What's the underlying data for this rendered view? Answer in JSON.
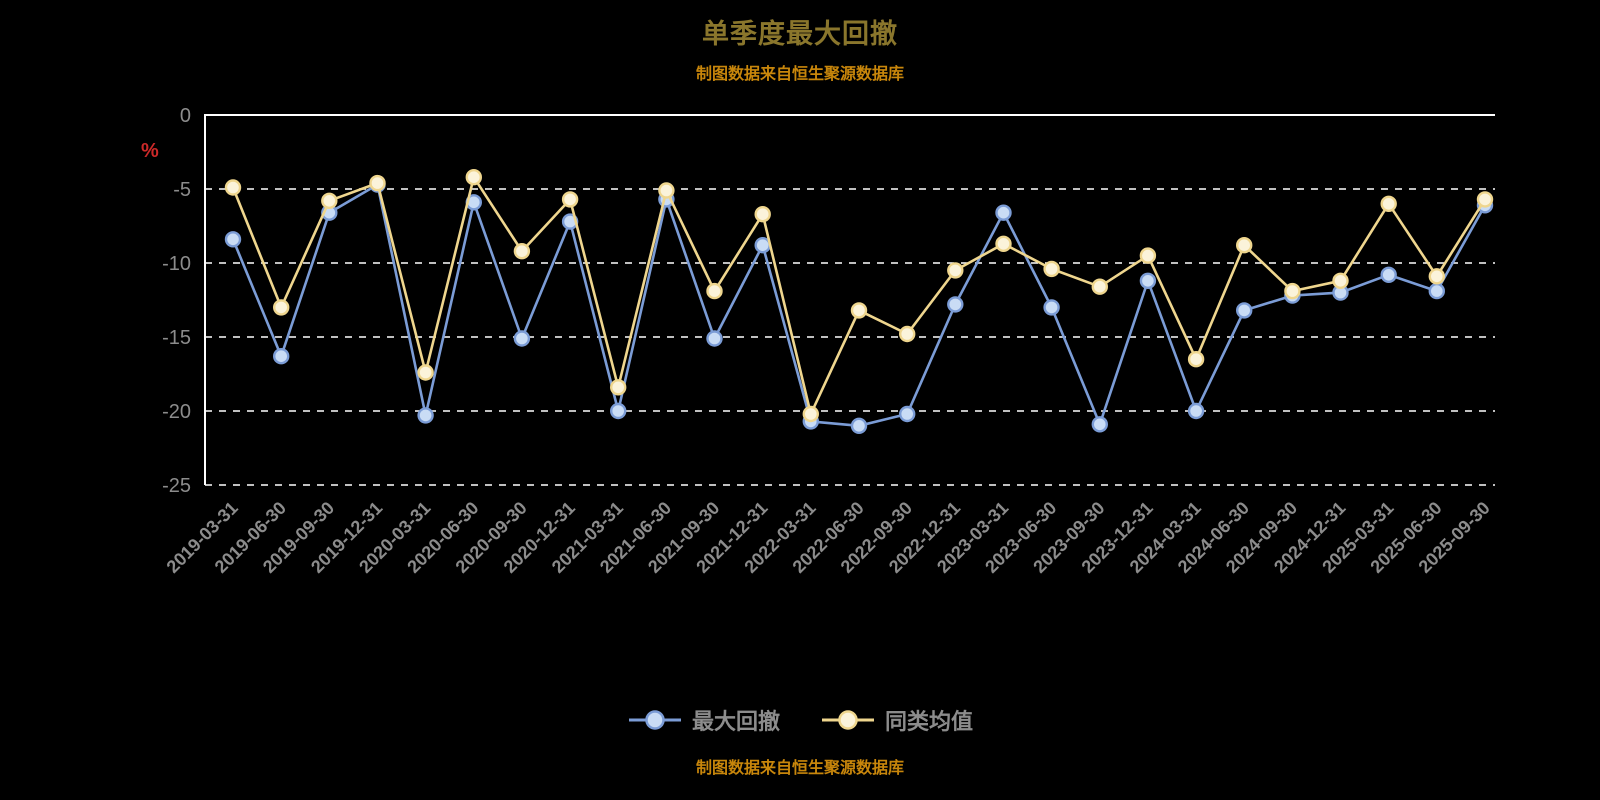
{
  "title": "单季度最大回撤",
  "subtitle": "制图数据来自恒生聚源数据库",
  "footer": "制图数据来自恒生聚源数据库",
  "y_axis_unit": "%",
  "colors": {
    "background": "#000000",
    "title": "#8a762c",
    "source_text": "#c8860b",
    "axis_unit": "#cc2929",
    "axis_label": "#8c8c8c",
    "grid": "#ffffff",
    "legend_text": "#8c8c8c"
  },
  "chart_data": {
    "type": "line",
    "title": "单季度最大回撤",
    "xlabel": "",
    "ylabel": "%",
    "ylim": [
      -25,
      0
    ],
    "yticks": [
      0,
      -5,
      -10,
      -15,
      -20,
      -25
    ],
    "grid": true,
    "grid_style": "dashed",
    "legend_position": "bottom",
    "categories": [
      "2019-03-31",
      "2019-06-30",
      "2019-09-30",
      "2019-12-31",
      "2020-03-31",
      "2020-06-30",
      "2020-09-30",
      "2020-12-31",
      "2021-03-31",
      "2021-06-30",
      "2021-09-30",
      "2021-12-31",
      "2022-03-31",
      "2022-06-30",
      "2022-09-30",
      "2022-12-31",
      "2023-03-31",
      "2023-06-30",
      "2023-09-30",
      "2023-12-31",
      "2024-03-31",
      "2024-06-30",
      "2024-09-30",
      "2024-12-31",
      "2025-03-31",
      "2025-06-30",
      "2025-09-30"
    ],
    "series": [
      {
        "name": "最大回撤",
        "color": "#7b9cd6",
        "marker_fill": "#c9dcf5",
        "values": [
          -8.4,
          -16.3,
          -6.6,
          -4.7,
          -20.3,
          -5.9,
          -15.1,
          -7.2,
          -20.0,
          -5.7,
          -15.1,
          -8.8,
          -20.7,
          -21.0,
          -20.2,
          -12.8,
          -6.6,
          -13.0,
          -20.9,
          -11.2,
          -20.0,
          -13.2,
          -12.2,
          -12.0,
          -10.8,
          -11.9,
          -6.1
        ]
      },
      {
        "name": "同类均值",
        "color": "#efd68e",
        "marker_fill": "#fbf3da",
        "values": [
          -4.9,
          -13.0,
          -5.8,
          -4.6,
          -17.4,
          -4.2,
          -9.2,
          -5.7,
          -18.4,
          -5.1,
          -11.9,
          -6.7,
          -20.2,
          -13.2,
          -14.8,
          -10.5,
          -8.7,
          -10.4,
          -11.6,
          -9.5,
          -16.5,
          -8.8,
          -11.9,
          -11.2,
          -6.0,
          -10.9,
          -5.7
        ]
      }
    ]
  }
}
